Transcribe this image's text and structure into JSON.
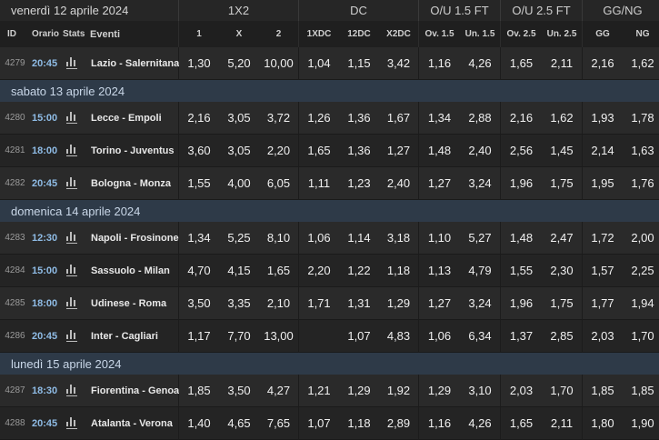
{
  "header": {
    "first_date": "venerdì 12 aprile 2024",
    "groups": [
      "1X2",
      "DC",
      "O/U 1.5 FT",
      "O/U 2.5 FT",
      "GG/NG"
    ],
    "columns": [
      "ID",
      "Orario",
      "Stats",
      "Eventi",
      "1",
      "X",
      "2",
      "1XDC",
      "12DC",
      "X2DC",
      "Ov. 1.5",
      "Un. 1.5",
      "Ov. 2.5",
      "Un. 2.5",
      "GG",
      "NG"
    ]
  },
  "sections": [
    {
      "date": "venerdì 12 aprile 2024",
      "matches": [
        {
          "id": "4279",
          "time": "20:45",
          "event": "Lazio - Salernitana",
          "odds": [
            "1,30",
            "5,20",
            "10,00",
            "1,04",
            "1,15",
            "3,42",
            "1,16",
            "4,26",
            "1,65",
            "2,11",
            "2,16",
            "1,62"
          ]
        }
      ]
    },
    {
      "date": "sabato 13 aprile 2024",
      "matches": [
        {
          "id": "4280",
          "time": "15:00",
          "event": "Lecce - Empoli",
          "odds": [
            "2,16",
            "3,05",
            "3,72",
            "1,26",
            "1,36",
            "1,67",
            "1,34",
            "2,88",
            "2,16",
            "1,62",
            "1,93",
            "1,78"
          ]
        },
        {
          "id": "4281",
          "time": "18:00",
          "event": "Torino - Juventus",
          "odds": [
            "3,60",
            "3,05",
            "2,20",
            "1,65",
            "1,36",
            "1,27",
            "1,48",
            "2,40",
            "2,56",
            "1,45",
            "2,14",
            "1,63"
          ]
        },
        {
          "id": "4282",
          "time": "20:45",
          "event": "Bologna - Monza",
          "odds": [
            "1,55",
            "4,00",
            "6,05",
            "1,11",
            "1,23",
            "2,40",
            "1,27",
            "3,24",
            "1,96",
            "1,75",
            "1,95",
            "1,76"
          ]
        }
      ]
    },
    {
      "date": "domenica 14 aprile 2024",
      "matches": [
        {
          "id": "4283",
          "time": "12:30",
          "event": "Napoli - Frosinone",
          "odds": [
            "1,34",
            "5,25",
            "8,10",
            "1,06",
            "1,14",
            "3,18",
            "1,10",
            "5,27",
            "1,48",
            "2,47",
            "1,72",
            "2,00"
          ]
        },
        {
          "id": "4284",
          "time": "15:00",
          "event": "Sassuolo - Milan",
          "odds": [
            "4,70",
            "4,15",
            "1,65",
            "2,20",
            "1,22",
            "1,18",
            "1,13",
            "4,79",
            "1,55",
            "2,30",
            "1,57",
            "2,25"
          ]
        },
        {
          "id": "4285",
          "time": "18:00",
          "event": "Udinese - Roma",
          "odds": [
            "3,50",
            "3,35",
            "2,10",
            "1,71",
            "1,31",
            "1,29",
            "1,27",
            "3,24",
            "1,96",
            "1,75",
            "1,77",
            "1,94"
          ]
        },
        {
          "id": "4286",
          "time": "20:45",
          "event": "Inter - Cagliari",
          "odds": [
            "1,17",
            "7,70",
            "13,00",
            "",
            "1,07",
            "4,83",
            "1,06",
            "6,34",
            "1,37",
            "2,85",
            "2,03",
            "1,70"
          ]
        }
      ]
    },
    {
      "date": "lunedì 15 aprile 2024",
      "matches": [
        {
          "id": "4287",
          "time": "18:30",
          "event": "Fiorentina - Genoa",
          "odds": [
            "1,85",
            "3,50",
            "4,27",
            "1,21",
            "1,29",
            "1,92",
            "1,29",
            "3,10",
            "2,03",
            "1,70",
            "1,85",
            "1,85"
          ]
        },
        {
          "id": "4288",
          "time": "20:45",
          "event": "Atalanta - Verona",
          "odds": [
            "1,40",
            "4,65",
            "7,65",
            "1,07",
            "1,18",
            "2,89",
            "1,16",
            "4,26",
            "1,65",
            "2,11",
            "1,80",
            "1,90"
          ]
        }
      ]
    }
  ],
  "icons": {
    "stats": "bar-chart-icon"
  },
  "colors": {
    "time": "#8fbce6",
    "section_bg": "#2e3a48",
    "header_bg": "#262626"
  }
}
